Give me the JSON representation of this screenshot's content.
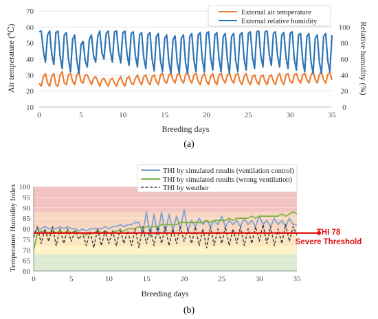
{
  "captions": {
    "a": "(a)",
    "b": "(b)"
  },
  "annotation": {
    "line1": "THI 78",
    "line2": "Severe Threshold",
    "color": "#e01010"
  },
  "chart_data": [
    {
      "type": "line",
      "panel": "a",
      "xlabel": "Breeding days",
      "ylabel_left": "Air temperature (℃)",
      "ylabel_right": "Relative humidity (%)",
      "xlim": [
        0,
        35
      ],
      "xticks": [
        "0",
        "5",
        "10",
        "15",
        "20",
        "25",
        "30",
        "35"
      ],
      "ylim_left": [
        10,
        70
      ],
      "yticks_left": [
        "10",
        "20",
        "30",
        "40",
        "50",
        "60",
        "70"
      ],
      "ylim_right": [
        0,
        120
      ],
      "yticks_right": [
        "0",
        "20",
        "40",
        "60",
        "80",
        "100"
      ],
      "grid": "horizontal",
      "legend": "top-right",
      "series": [
        {
          "name": "External air temperature",
          "axis": "left",
          "color": "#ed7d31",
          "x": [
            0,
            0.25,
            0.5,
            0.75,
            1,
            1.25,
            1.5,
            1.75,
            2,
            2.25,
            2.5,
            2.75,
            3,
            3.25,
            3.5,
            3.75,
            4,
            4.25,
            4.5,
            4.75,
            5,
            5.25,
            5.5,
            5.75,
            6,
            6.25,
            6.5,
            6.75,
            7,
            7.25,
            7.5,
            7.75,
            8,
            8.25,
            8.5,
            8.75,
            9,
            9.25,
            9.5,
            9.75,
            10,
            10.25,
            10.5,
            10.75,
            11,
            11.25,
            11.5,
            11.75,
            12,
            12.25,
            12.5,
            12.75,
            13,
            13.25,
            13.5,
            13.75,
            14,
            14.25,
            14.5,
            14.75,
            15,
            15.25,
            15.5,
            15.75,
            16,
            16.25,
            16.5,
            16.75,
            17,
            17.25,
            17.5,
            17.75,
            18,
            18.25,
            18.5,
            18.75,
            19,
            19.25,
            19.5,
            19.75,
            20,
            20.25,
            20.5,
            20.75,
            21,
            21.25,
            21.5,
            21.75,
            22,
            22.25,
            22.5,
            22.75,
            23,
            23.25,
            23.5,
            23.75,
            24,
            24.25,
            24.5,
            24.75,
            25,
            25.25,
            25.5,
            25.75,
            26,
            26.25,
            26.5,
            26.75,
            27,
            27.25,
            27.5,
            27.75,
            28,
            28.25,
            28.5,
            28.75,
            29,
            29.25,
            29.5,
            29.75,
            30,
            30.25,
            30.5,
            30.75,
            31,
            31.25,
            31.5,
            31.75,
            32,
            32.25,
            32.5,
            32.75,
            33,
            33.25,
            33.5,
            33.75,
            34,
            34.25,
            34.5,
            34.75,
            35
          ],
          "values": [
            25,
            23,
            29,
            31,
            25,
            23,
            29,
            31,
            24,
            23,
            30,
            32,
            25,
            24,
            30,
            31,
            26,
            24,
            30,
            32,
            26,
            25,
            30,
            30,
            27,
            24,
            28,
            29,
            26,
            23,
            27,
            28,
            25,
            23,
            27,
            28,
            25,
            23,
            27,
            29,
            25,
            23,
            28,
            29,
            25,
            24,
            28,
            30,
            26,
            24,
            29,
            30,
            26,
            24,
            29,
            30,
            26,
            24,
            30,
            31,
            26,
            25,
            30,
            31,
            27,
            25,
            30,
            31,
            27,
            25,
            30,
            32,
            27,
            25,
            30,
            31,
            26,
            24,
            29,
            31,
            26,
            24,
            29,
            31,
            26,
            24,
            30,
            31,
            27,
            25,
            30,
            31,
            27,
            25,
            30,
            31,
            26,
            24,
            29,
            31,
            26,
            24,
            29,
            30,
            26,
            24,
            29,
            30,
            26,
            24,
            29,
            30,
            26,
            24,
            29,
            31,
            26,
            24,
            30,
            31,
            26,
            25,
            30,
            31,
            27,
            25,
            30,
            31,
            27,
            25,
            30,
            32,
            27,
            25,
            30,
            32,
            27,
            25,
            30,
            32,
            27
          ]
        },
        {
          "name": "External relative humidity",
          "axis": "right",
          "color": "#2e75b6",
          "x": [
            0,
            0.25,
            0.5,
            0.75,
            1,
            1.25,
            1.5,
            1.75,
            2,
            2.25,
            2.5,
            2.75,
            3,
            3.25,
            3.5,
            3.75,
            4,
            4.25,
            4.5,
            4.75,
            5,
            5.25,
            5.5,
            5.75,
            6,
            6.25,
            6.5,
            6.75,
            7,
            7.25,
            7.5,
            7.75,
            8,
            8.25,
            8.5,
            8.75,
            9,
            9.25,
            9.5,
            9.75,
            10,
            10.25,
            10.5,
            10.75,
            11,
            11.25,
            11.5,
            11.75,
            12,
            12.25,
            12.5,
            12.75,
            13,
            13.25,
            13.5,
            13.75,
            14,
            14.25,
            14.5,
            14.75,
            15,
            15.25,
            15.5,
            15.75,
            16,
            16.25,
            16.5,
            16.75,
            17,
            17.25,
            17.5,
            17.75,
            18,
            18.25,
            18.5,
            18.75,
            19,
            19.25,
            19.5,
            19.75,
            20,
            20.25,
            20.5,
            20.75,
            21,
            21.25,
            21.5,
            21.75,
            22,
            22.25,
            22.5,
            22.75,
            23,
            23.25,
            23.5,
            23.75,
            24,
            24.25,
            24.5,
            24.75,
            25,
            25.25,
            25.5,
            25.75,
            26,
            26.25,
            26.5,
            26.75,
            27,
            27.25,
            27.5,
            27.75,
            28,
            28.25,
            28.5,
            28.75,
            29,
            29.25,
            29.5,
            29.75,
            30,
            30.25,
            30.5,
            30.75,
            31,
            31.25,
            31.5,
            31.75,
            32,
            32.25,
            32.5,
            32.75,
            33,
            33.25,
            33.5,
            33.75,
            34,
            34.25,
            34.5,
            34.75,
            35
          ],
          "values": [
            94,
            95,
            70,
            56,
            90,
            95,
            66,
            53,
            93,
            95,
            64,
            48,
            90,
            93,
            60,
            44,
            85,
            90,
            58,
            42,
            78,
            82,
            58,
            50,
            84,
            90,
            64,
            56,
            88,
            95,
            68,
            60,
            92,
            95,
            70,
            56,
            94,
            95,
            68,
            55,
            93,
            95,
            66,
            52,
            92,
            94,
            64,
            50,
            90,
            93,
            62,
            48,
            90,
            93,
            60,
            45,
            88,
            92,
            58,
            44,
            86,
            90,
            56,
            42,
            84,
            89,
            56,
            42,
            86,
            90,
            55,
            42,
            88,
            92,
            58,
            44,
            90,
            93,
            60,
            44,
            92,
            94,
            62,
            46,
            90,
            93,
            60,
            44,
            88,
            92,
            58,
            42,
            88,
            92,
            58,
            44,
            90,
            93,
            60,
            46,
            92,
            94,
            62,
            48,
            94,
            95,
            64,
            50,
            94,
            95,
            66,
            52,
            92,
            94,
            64,
            50,
            90,
            93,
            62,
            48,
            92,
            94,
            60,
            46,
            90,
            92,
            58,
            44,
            88,
            92,
            56,
            42,
            86,
            90,
            56,
            42,
            88,
            92,
            58,
            44,
            90
          ]
        }
      ]
    },
    {
      "type": "line",
      "panel": "b",
      "xlabel": "Breeding days",
      "ylabel": "Temperature Humidity  Index",
      "xlim": [
        0,
        35
      ],
      "xticks": [
        "0",
        "5",
        "10",
        "15",
        "20",
        "25",
        "30",
        "35"
      ],
      "ylim": [
        60,
        100
      ],
      "yticks": [
        "60",
        "65",
        "70",
        "75",
        "80",
        "85",
        "90",
        "95",
        "100"
      ],
      "grid": "horizontal",
      "legend": "top",
      "background_bands": [
        {
          "from": 60,
          "to": 68,
          "color": "#dcebd2"
        },
        {
          "from": 68,
          "to": 72,
          "color": "#fdf3c4"
        },
        {
          "from": 72,
          "to": 78,
          "color": "#fce6bf"
        },
        {
          "from": 78,
          "to": 88,
          "color": "#f8d6c2"
        },
        {
          "from": 88,
          "to": 100,
          "color": "#f3c3c3"
        }
      ],
      "threshold": {
        "value": 78,
        "color": "#e01010"
      },
      "series": [
        {
          "name": "THI by simulated results (ventilation control)",
          "color": "#7da3d1",
          "style": "solid",
          "x": [
            0,
            0.5,
            1,
            1.5,
            2,
            2.5,
            3,
            3.5,
            4,
            4.5,
            5,
            5.5,
            6,
            6.5,
            7,
            7.5,
            8,
            8.5,
            9,
            9.5,
            10,
            10.5,
            11,
            11.5,
            12,
            12.5,
            13,
            13.5,
            14,
            14.5,
            15,
            15.5,
            16,
            16.5,
            17,
            17.5,
            18,
            18.5,
            19,
            19.5,
            20,
            20.5,
            21,
            21.5,
            22,
            22.5,
            23,
            23.5,
            24,
            24.5,
            25,
            25.5,
            26,
            26.5,
            27,
            27.5,
            28,
            28.5,
            29,
            29.5,
            30,
            30.5,
            31,
            31.5,
            32,
            32.5,
            33,
            33.5,
            34,
            34.5,
            35
          ],
          "values": [
            78,
            80,
            80,
            81,
            80,
            80,
            80,
            81,
            80,
            81,
            80,
            80,
            79,
            80,
            79,
            80,
            80,
            80,
            80,
            81,
            80,
            81,
            81,
            82,
            81,
            82,
            82,
            83,
            83,
            78,
            88,
            76,
            87,
            77,
            88,
            78,
            87,
            79,
            86,
            80,
            89,
            79,
            84,
            81,
            85,
            82,
            84,
            81,
            84,
            82,
            86,
            81,
            84,
            82,
            84,
            81,
            85,
            82,
            84,
            81,
            86,
            82,
            84,
            81,
            85,
            82,
            84,
            81,
            85,
            82,
            82
          ]
        },
        {
          "name": "THI by simulated results (wrong ventilation)",
          "color": "#7cb342",
          "style": "solid",
          "x": [
            0,
            0.5,
            1,
            1.5,
            2,
            2.5,
            3,
            3.5,
            4,
            4.5,
            5,
            5.5,
            6,
            6.5,
            7,
            7.5,
            8,
            8.5,
            9,
            9.5,
            10,
            10.5,
            11,
            11.5,
            12,
            12.5,
            13,
            13.5,
            14,
            14.5,
            15,
            15.5,
            16,
            16.5,
            17,
            17.5,
            18,
            18.5,
            19,
            19.5,
            20,
            20.5,
            21,
            21.5,
            22,
            22.5,
            23,
            23.5,
            24,
            24.5,
            25,
            25.5,
            26,
            26.5,
            27,
            27.5,
            28,
            28.5,
            29,
            29.5,
            30,
            30.5,
            31,
            31.5,
            32,
            32.5,
            33,
            33.5,
            34,
            34.5,
            35
          ],
          "values": [
            70,
            78,
            79,
            78,
            78,
            79,
            78,
            79,
            78,
            79,
            78,
            79,
            78,
            78,
            77,
            78,
            78,
            79,
            78,
            79,
            78,
            78,
            79,
            79,
            79,
            80,
            80,
            80,
            81,
            80,
            81,
            81,
            81,
            81,
            82,
            82,
            82,
            82,
            82,
            83,
            83,
            83,
            83,
            83,
            83,
            83,
            84,
            83,
            84,
            84,
            84,
            84,
            85,
            84,
            85,
            85,
            85,
            85,
            86,
            85,
            86,
            86,
            86,
            86,
            86,
            86,
            87,
            86,
            87,
            88,
            87
          ]
        },
        {
          "name": "THI by weather",
          "color": "#404040",
          "style": "dashed",
          "x": [
            0,
            0.5,
            1,
            1.5,
            2,
            2.5,
            3,
            3.5,
            4,
            4.5,
            5,
            5.5,
            6,
            6.5,
            7,
            7.5,
            8,
            8.5,
            9,
            9.5,
            10,
            10.5,
            11,
            11.5,
            12,
            12.5,
            13,
            13.5,
            14,
            14.5,
            15,
            15.5,
            16,
            16.5,
            17,
            17.5,
            18,
            18.5,
            19,
            19.5,
            20,
            20.5,
            21,
            21.5,
            22,
            22.5,
            23,
            23.5,
            24,
            24.5,
            25,
            25.5,
            26,
            26.5,
            27,
            27.5,
            28,
            28.5,
            29,
            29.5,
            30,
            30.5,
            31,
            31.5,
            32,
            32.5,
            33,
            33.5,
            34,
            34.5,
            35
          ],
          "values": [
            76,
            81,
            73,
            80,
            74,
            81,
            72,
            80,
            73,
            80,
            74,
            79,
            75,
            78,
            72,
            79,
            71,
            80,
            72,
            79,
            73,
            79,
            72,
            80,
            73,
            79,
            72,
            80,
            71,
            81,
            73,
            80,
            72,
            81,
            73,
            81,
            72,
            80,
            73,
            81,
            74,
            80,
            73,
            81,
            72,
            80,
            71,
            81,
            72,
            80,
            73,
            81,
            72,
            80,
            73,
            81,
            72,
            80,
            73,
            81,
            74,
            82,
            73,
            81,
            72,
            80,
            73,
            82,
            74,
            81,
            77
          ]
        }
      ]
    }
  ]
}
